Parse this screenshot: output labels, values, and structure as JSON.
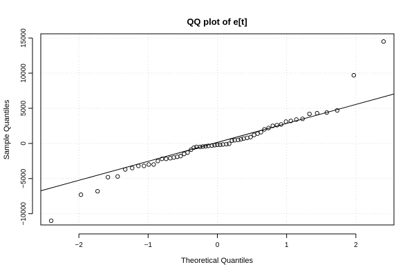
{
  "chart_data": {
    "type": "scatter",
    "title": "QQ plot of e[t]",
    "xlabel": "Theoretical Quantiles",
    "ylabel": "Sample Quantiles",
    "xlim": [
      -2.55,
      2.55
    ],
    "ylim": [
      -11600,
      15600
    ],
    "x_ticks": [
      -2,
      -1,
      0,
      1,
      2
    ],
    "x_tick_labels": [
      "−2",
      "−1",
      "0",
      "1",
      "2"
    ],
    "y_ticks": [
      -10000,
      -5000,
      0,
      5000,
      10000,
      15000
    ],
    "y_tick_labels": [
      "−10000",
      "−5000",
      "0",
      "5000",
      "10000",
      "15000"
    ],
    "grid": true,
    "reference_line": {
      "intercept": 150,
      "slope": 2700
    },
    "points": [
      {
        "x": -2.4,
        "y": -11000
      },
      {
        "x": -1.97,
        "y": -7300
      },
      {
        "x": -1.73,
        "y": -6800
      },
      {
        "x": -1.58,
        "y": -4800
      },
      {
        "x": -1.44,
        "y": -4700
      },
      {
        "x": -1.33,
        "y": -3700
      },
      {
        "x": -1.23,
        "y": -3500
      },
      {
        "x": -1.14,
        "y": -3200
      },
      {
        "x": -1.06,
        "y": -3200
      },
      {
        "x": -0.99,
        "y": -3000
      },
      {
        "x": -0.92,
        "y": -3000
      },
      {
        "x": -0.86,
        "y": -2500
      },
      {
        "x": -0.8,
        "y": -2200
      },
      {
        "x": -0.74,
        "y": -2200
      },
      {
        "x": -0.68,
        "y": -2100
      },
      {
        "x": -0.63,
        "y": -2000
      },
      {
        "x": -0.58,
        "y": -1900
      },
      {
        "x": -0.53,
        "y": -1800
      },
      {
        "x": -0.48,
        "y": -1500
      },
      {
        "x": -0.43,
        "y": -1300
      },
      {
        "x": -0.38,
        "y": -900
      },
      {
        "x": -0.34,
        "y": -600
      },
      {
        "x": -0.3,
        "y": -500
      },
      {
        "x": -0.25,
        "y": -500
      },
      {
        "x": -0.21,
        "y": -450
      },
      {
        "x": -0.17,
        "y": -400
      },
      {
        "x": -0.13,
        "y": -350
      },
      {
        "x": -0.08,
        "y": -300
      },
      {
        "x": -0.04,
        "y": -250
      },
      {
        "x": 0.0,
        "y": -200
      },
      {
        "x": 0.04,
        "y": -200
      },
      {
        "x": 0.08,
        "y": -150
      },
      {
        "x": 0.13,
        "y": -100
      },
      {
        "x": 0.17,
        "y": -50
      },
      {
        "x": 0.21,
        "y": 400
      },
      {
        "x": 0.25,
        "y": 450
      },
      {
        "x": 0.3,
        "y": 500
      },
      {
        "x": 0.34,
        "y": 600
      },
      {
        "x": 0.38,
        "y": 700
      },
      {
        "x": 0.43,
        "y": 800
      },
      {
        "x": 0.48,
        "y": 900
      },
      {
        "x": 0.53,
        "y": 1200
      },
      {
        "x": 0.58,
        "y": 1400
      },
      {
        "x": 0.63,
        "y": 1600
      },
      {
        "x": 0.68,
        "y": 2000
      },
      {
        "x": 0.74,
        "y": 2200
      },
      {
        "x": 0.8,
        "y": 2500
      },
      {
        "x": 0.86,
        "y": 2600
      },
      {
        "x": 0.92,
        "y": 2700
      },
      {
        "x": 0.99,
        "y": 3100
      },
      {
        "x": 1.06,
        "y": 3200
      },
      {
        "x": 1.14,
        "y": 3400
      },
      {
        "x": 1.23,
        "y": 3500
      },
      {
        "x": 1.33,
        "y": 4200
      },
      {
        "x": 1.44,
        "y": 4300
      },
      {
        "x": 1.58,
        "y": 4400
      },
      {
        "x": 1.73,
        "y": 4700
      },
      {
        "x": 1.97,
        "y": 9700
      },
      {
        "x": 2.4,
        "y": 14500
      }
    ]
  }
}
